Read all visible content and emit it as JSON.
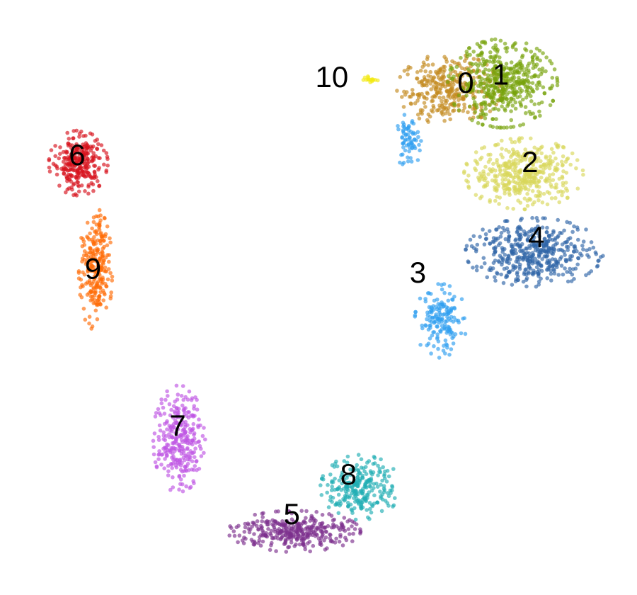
{
  "chart_data": {
    "type": "scatter",
    "title": "",
    "xlabel": "",
    "ylabel": "",
    "xlim": [
      0,
      100
    ],
    "ylim": [
      0,
      100
    ],
    "grid": false,
    "axes_visible": false,
    "legend": "none",
    "point_opacity": 0.65,
    "clusters": [
      {
        "label": "0",
        "color": "#c38b1f",
        "label_at": [
          73.1,
          85.7
        ],
        "shapes": [
          {
            "kind": "ellipse",
            "c": [
              70.5,
              85.0
            ],
            "r": [
              7.8,
              5.7
            ],
            "n": 330
          }
        ]
      },
      {
        "label": "1",
        "color": "#78a30c",
        "label_at": [
          78.6,
          87.1
        ],
        "shapes": [
          {
            "kind": "ellipse",
            "c": [
              78.9,
              86.0
            ],
            "r": [
              8.2,
              7.1
            ],
            "n": 480
          }
        ]
      },
      {
        "label": "2",
        "color": "#d8d75a",
        "label_at": [
          83.2,
          72.4
        ],
        "shapes": [
          {
            "kind": "ellipse",
            "c": [
              82.2,
              70.8
            ],
            "r": [
              8.9,
              5.7
            ],
            "n": 430
          }
        ]
      },
      {
        "label": "3",
        "color": "#2e9ef0",
        "label_at": [
          65.6,
          53.8
        ],
        "shapes": [
          {
            "kind": "ellipse",
            "c": [
              69.2,
              46.0
            ],
            "r": [
              3.9,
              6.0
            ],
            "n": 160
          },
          {
            "kind": "ellipse",
            "c": [
              64.1,
              76.2
            ],
            "r": [
              1.9,
              4.5
            ],
            "n": 70
          }
        ]
      },
      {
        "label": "4",
        "color": "#2f66a7",
        "label_at": [
          84.2,
          59.8
        ],
        "shapes": [
          {
            "kind": "ellipse",
            "c": [
              83.9,
              57.6
            ],
            "r": [
              10.3,
              5.5
            ],
            "n": 460
          }
        ]
      },
      {
        "label": "5",
        "color": "#7c2f8e",
        "label_at": [
          45.8,
          13.2
        ],
        "shapes": [
          {
            "kind": "ellipse",
            "c": [
              46.2,
              10.7
            ],
            "r": [
              9.9,
              3.3
            ],
            "n": 340
          }
        ]
      },
      {
        "label": "6",
        "color": "#d7121d",
        "label_at": [
          12.1,
          73.6
        ],
        "shapes": [
          {
            "kind": "ellipse",
            "c": [
              12.3,
              72.6
            ],
            "r": [
              4.4,
              5.2
            ],
            "n": 280
          }
        ]
      },
      {
        "label": "7",
        "color": "#bf55e3",
        "label_at": [
          27.9,
          28.1
        ],
        "shapes": [
          {
            "kind": "ellipse",
            "c": [
              28.1,
              26.2
            ],
            "r": [
              3.9,
              8.6
            ],
            "n": 290
          }
        ]
      },
      {
        "label": "8",
        "color": "#20aeb4",
        "label_at": [
          54.7,
          19.9
        ],
        "shapes": [
          {
            "kind": "ellipse",
            "c": [
              56.6,
              18.1
            ],
            "r": [
              6.0,
              5.2
            ],
            "n": 260
          }
        ]
      },
      {
        "label": "9",
        "color": "#ff6b06",
        "label_at": [
          14.6,
          54.5
        ],
        "shapes": [
          {
            "kind": "ellipse",
            "c": [
              15.0,
              54.5
            ],
            "r": [
              2.5,
              10.0
            ],
            "n": 250
          }
        ]
      },
      {
        "label": "10",
        "color": "#f3ea11",
        "label_at": [
          52.1,
          86.7
        ],
        "shapes": [
          {
            "kind": "ellipse",
            "c": [
              58.2,
              86.6
            ],
            "r": [
              1.1,
              0.6
            ],
            "n": 16
          }
        ]
      }
    ]
  }
}
